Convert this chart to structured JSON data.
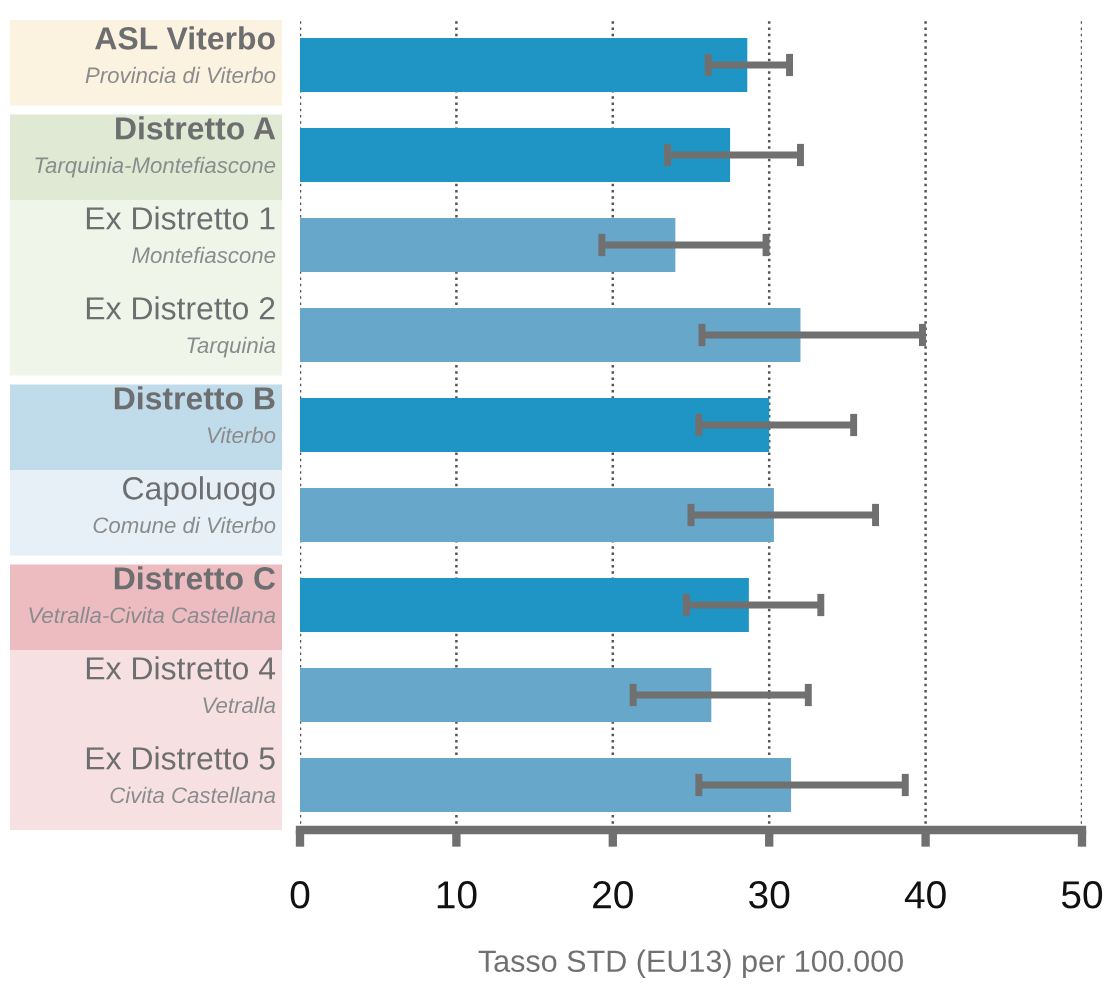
{
  "chart_data": {
    "type": "bar",
    "orientation": "horizontal",
    "categories": [
      "ASL Viterbo\nProvincia di Viterbo",
      "Distretto A\nTarquinia-Montefiascone",
      "Ex Distretto 1\nMontefiascone",
      "Ex Distretto 2\nTarquinia",
      "Distretto B\nViterbo",
      "Capoluogo\nComune di Viterbo",
      "Distretto C\nVetralla-Civita Castellana",
      "Ex Distretto 4\nVetralla",
      "Ex Distretto 5\nCivita Castellana"
    ],
    "values": [
      28.6,
      27.5,
      24.0,
      32.0,
      30.0,
      30.3,
      28.7,
      26.3,
      31.4
    ],
    "colors": [
      "#1f95c6",
      "#1f95c6",
      "#67a7c9",
      "#67a7c9",
      "#1f95c6",
      "#67a7c9",
      "#1f95c6",
      "#67a7c9",
      "#67a7c9"
    ],
    "errors": [
      [
        26.1,
        31.3
      ],
      [
        23.5,
        32.0
      ],
      [
        19.3,
        29.8
      ],
      [
        25.7,
        39.8
      ],
      [
        25.5,
        35.4
      ],
      [
        25.0,
        36.8
      ],
      [
        24.7,
        33.3
      ],
      [
        21.3,
        32.5
      ],
      [
        25.5,
        38.7
      ]
    ],
    "xlabel": "Tasso STD (EU13) per 100.000",
    "xlim": [
      0,
      50
    ],
    "xticks": [
      0,
      10,
      20,
      30,
      40,
      50
    ],
    "grid": "x",
    "legend": false
  }
}
